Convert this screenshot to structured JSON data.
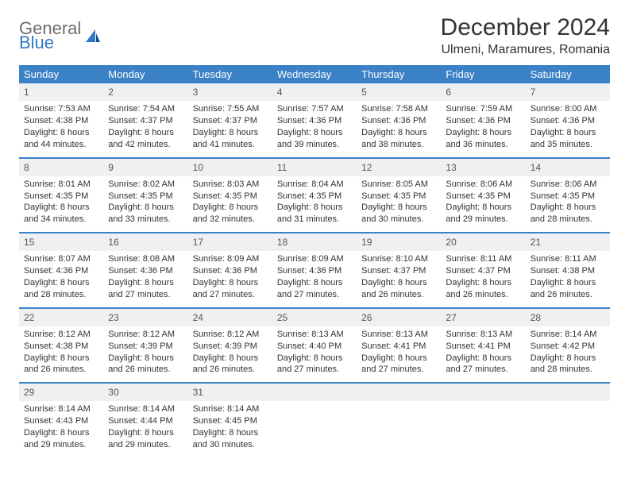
{
  "logo": {
    "general": "General",
    "blue": "Blue"
  },
  "title": "December 2024",
  "subtitle": "Ulmeni, Maramures, Romania",
  "colors": {
    "header_bg": "#3a81c5",
    "header_text": "#ffffff",
    "daynum_bg": "#eef0f2",
    "body_text": "#333333",
    "rule": "#3a81c5",
    "logo_general": "#6d6d6d",
    "logo_blue": "#2f78c4"
  },
  "fontsizes": {
    "title": 30,
    "subtitle": 16,
    "header": 13,
    "daynum": 12,
    "body": 11
  },
  "dayHeaders": [
    "Sunday",
    "Monday",
    "Tuesday",
    "Wednesday",
    "Thursday",
    "Friday",
    "Saturday"
  ],
  "weeks": [
    [
      {
        "num": "1",
        "sunrise": "Sunrise: 7:53 AM",
        "sunset": "Sunset: 4:38 PM",
        "daylight": "Daylight: 8 hours and 44 minutes."
      },
      {
        "num": "2",
        "sunrise": "Sunrise: 7:54 AM",
        "sunset": "Sunset: 4:37 PM",
        "daylight": "Daylight: 8 hours and 42 minutes."
      },
      {
        "num": "3",
        "sunrise": "Sunrise: 7:55 AM",
        "sunset": "Sunset: 4:37 PM",
        "daylight": "Daylight: 8 hours and 41 minutes."
      },
      {
        "num": "4",
        "sunrise": "Sunrise: 7:57 AM",
        "sunset": "Sunset: 4:36 PM",
        "daylight": "Daylight: 8 hours and 39 minutes."
      },
      {
        "num": "5",
        "sunrise": "Sunrise: 7:58 AM",
        "sunset": "Sunset: 4:36 PM",
        "daylight": "Daylight: 8 hours and 38 minutes."
      },
      {
        "num": "6",
        "sunrise": "Sunrise: 7:59 AM",
        "sunset": "Sunset: 4:36 PM",
        "daylight": "Daylight: 8 hours and 36 minutes."
      },
      {
        "num": "7",
        "sunrise": "Sunrise: 8:00 AM",
        "sunset": "Sunset: 4:36 PM",
        "daylight": "Daylight: 8 hours and 35 minutes."
      }
    ],
    [
      {
        "num": "8",
        "sunrise": "Sunrise: 8:01 AM",
        "sunset": "Sunset: 4:35 PM",
        "daylight": "Daylight: 8 hours and 34 minutes."
      },
      {
        "num": "9",
        "sunrise": "Sunrise: 8:02 AM",
        "sunset": "Sunset: 4:35 PM",
        "daylight": "Daylight: 8 hours and 33 minutes."
      },
      {
        "num": "10",
        "sunrise": "Sunrise: 8:03 AM",
        "sunset": "Sunset: 4:35 PM",
        "daylight": "Daylight: 8 hours and 32 minutes."
      },
      {
        "num": "11",
        "sunrise": "Sunrise: 8:04 AM",
        "sunset": "Sunset: 4:35 PM",
        "daylight": "Daylight: 8 hours and 31 minutes."
      },
      {
        "num": "12",
        "sunrise": "Sunrise: 8:05 AM",
        "sunset": "Sunset: 4:35 PM",
        "daylight": "Daylight: 8 hours and 30 minutes."
      },
      {
        "num": "13",
        "sunrise": "Sunrise: 8:06 AM",
        "sunset": "Sunset: 4:35 PM",
        "daylight": "Daylight: 8 hours and 29 minutes."
      },
      {
        "num": "14",
        "sunrise": "Sunrise: 8:06 AM",
        "sunset": "Sunset: 4:35 PM",
        "daylight": "Daylight: 8 hours and 28 minutes."
      }
    ],
    [
      {
        "num": "15",
        "sunrise": "Sunrise: 8:07 AM",
        "sunset": "Sunset: 4:36 PM",
        "daylight": "Daylight: 8 hours and 28 minutes."
      },
      {
        "num": "16",
        "sunrise": "Sunrise: 8:08 AM",
        "sunset": "Sunset: 4:36 PM",
        "daylight": "Daylight: 8 hours and 27 minutes."
      },
      {
        "num": "17",
        "sunrise": "Sunrise: 8:09 AM",
        "sunset": "Sunset: 4:36 PM",
        "daylight": "Daylight: 8 hours and 27 minutes."
      },
      {
        "num": "18",
        "sunrise": "Sunrise: 8:09 AM",
        "sunset": "Sunset: 4:36 PM",
        "daylight": "Daylight: 8 hours and 27 minutes."
      },
      {
        "num": "19",
        "sunrise": "Sunrise: 8:10 AM",
        "sunset": "Sunset: 4:37 PM",
        "daylight": "Daylight: 8 hours and 26 minutes."
      },
      {
        "num": "20",
        "sunrise": "Sunrise: 8:11 AM",
        "sunset": "Sunset: 4:37 PM",
        "daylight": "Daylight: 8 hours and 26 minutes."
      },
      {
        "num": "21",
        "sunrise": "Sunrise: 8:11 AM",
        "sunset": "Sunset: 4:38 PM",
        "daylight": "Daylight: 8 hours and 26 minutes."
      }
    ],
    [
      {
        "num": "22",
        "sunrise": "Sunrise: 8:12 AM",
        "sunset": "Sunset: 4:38 PM",
        "daylight": "Daylight: 8 hours and 26 minutes."
      },
      {
        "num": "23",
        "sunrise": "Sunrise: 8:12 AM",
        "sunset": "Sunset: 4:39 PM",
        "daylight": "Daylight: 8 hours and 26 minutes."
      },
      {
        "num": "24",
        "sunrise": "Sunrise: 8:12 AM",
        "sunset": "Sunset: 4:39 PM",
        "daylight": "Daylight: 8 hours and 26 minutes."
      },
      {
        "num": "25",
        "sunrise": "Sunrise: 8:13 AM",
        "sunset": "Sunset: 4:40 PM",
        "daylight": "Daylight: 8 hours and 27 minutes."
      },
      {
        "num": "26",
        "sunrise": "Sunrise: 8:13 AM",
        "sunset": "Sunset: 4:41 PM",
        "daylight": "Daylight: 8 hours and 27 minutes."
      },
      {
        "num": "27",
        "sunrise": "Sunrise: 8:13 AM",
        "sunset": "Sunset: 4:41 PM",
        "daylight": "Daylight: 8 hours and 27 minutes."
      },
      {
        "num": "28",
        "sunrise": "Sunrise: 8:14 AM",
        "sunset": "Sunset: 4:42 PM",
        "daylight": "Daylight: 8 hours and 28 minutes."
      }
    ],
    [
      {
        "num": "29",
        "sunrise": "Sunrise: 8:14 AM",
        "sunset": "Sunset: 4:43 PM",
        "daylight": "Daylight: 8 hours and 29 minutes."
      },
      {
        "num": "30",
        "sunrise": "Sunrise: 8:14 AM",
        "sunset": "Sunset: 4:44 PM",
        "daylight": "Daylight: 8 hours and 29 minutes."
      },
      {
        "num": "31",
        "sunrise": "Sunrise: 8:14 AM",
        "sunset": "Sunset: 4:45 PM",
        "daylight": "Daylight: 8 hours and 30 minutes."
      },
      {
        "empty": true
      },
      {
        "empty": true
      },
      {
        "empty": true
      },
      {
        "empty": true
      }
    ]
  ]
}
